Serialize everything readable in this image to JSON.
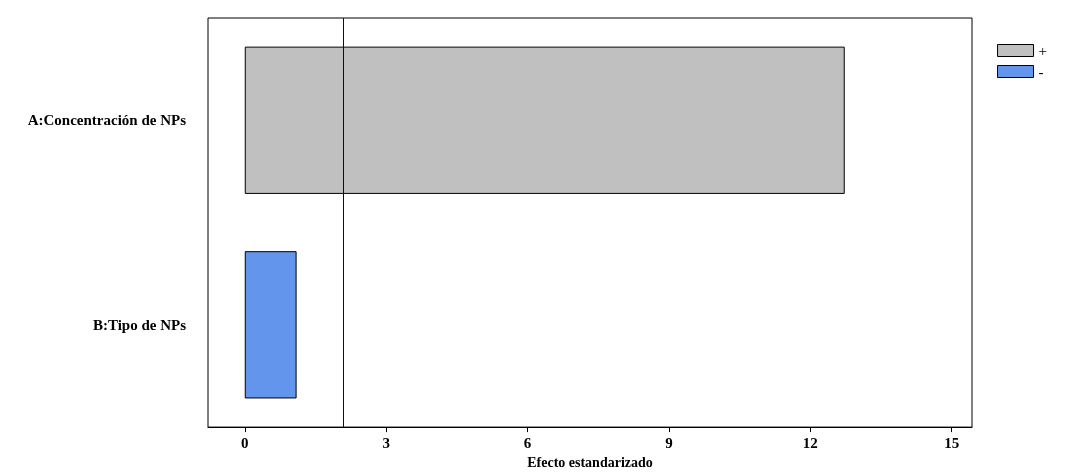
{
  "chart_data": {
    "type": "bar",
    "orientation": "horizontal",
    "stacked": true,
    "xlabel": "Efecto estandarizado",
    "categories": [
      "A:Concentración de NPs",
      "B:Tipo de NPs"
    ],
    "series": [
      {
        "name": "+",
        "color": "#c0c0c0",
        "values": [
          12.73,
          null
        ]
      },
      {
        "name": "-",
        "color": "#6495ed",
        "values": [
          null,
          1.1
        ]
      }
    ],
    "xlim": [
      -0.78,
      15.43
    ],
    "xticks": [
      0,
      3,
      6,
      9,
      12,
      15
    ],
    "grid": false,
    "legend": "top right",
    "ref_lines": [
      {
        "axis": "x",
        "value": 2.08,
        "color": "#00008b"
      }
    ]
  }
}
